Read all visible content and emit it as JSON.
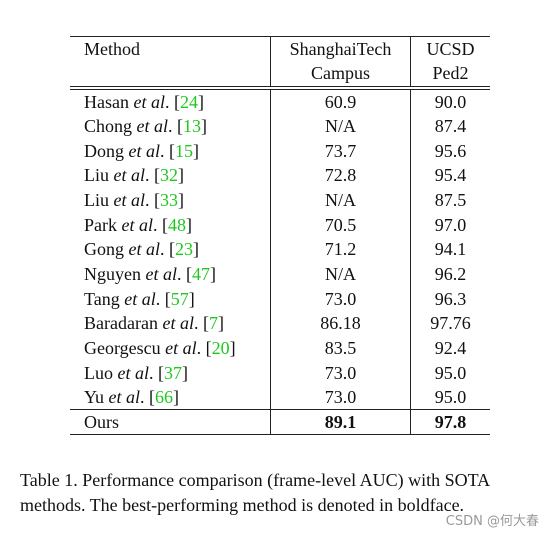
{
  "table": {
    "header": [
      [
        "Method"
      ],
      [
        "ShanghaiTech",
        "Campus"
      ],
      [
        "UCSD",
        "Ped2"
      ]
    ],
    "rows": [
      [
        [
          "Hasan ",
          "et al",
          ". [",
          "24",
          "]"
        ],
        "60.9",
        "90.0"
      ],
      [
        [
          "Chong ",
          "et al",
          ". [",
          "13",
          "]"
        ],
        "N/A",
        "87.4"
      ],
      [
        [
          "Dong ",
          "et al",
          ". [",
          "15",
          "]"
        ],
        "73.7",
        "95.6"
      ],
      [
        [
          "Liu ",
          "et al",
          ". [",
          "32",
          "]"
        ],
        "72.8",
        "95.4"
      ],
      [
        [
          "Liu ",
          "et al",
          ". [",
          "33",
          "]"
        ],
        "N/A",
        "87.5"
      ],
      [
        [
          "Park ",
          "et al",
          ". [",
          "48",
          "]"
        ],
        "70.5",
        "97.0"
      ],
      [
        [
          "Gong ",
          "et al",
          ". [",
          "23",
          "]"
        ],
        "71.2",
        "94.1"
      ],
      [
        [
          "Nguyen ",
          "et al",
          ". [",
          "47",
          "]"
        ],
        "N/A",
        "96.2"
      ],
      [
        [
          "Tang ",
          "et al",
          ". [",
          "57",
          "]"
        ],
        "73.0",
        "96.3"
      ],
      [
        [
          "Baradaran ",
          "et al",
          ". [",
          "7",
          "]"
        ],
        "86.18",
        "97.76"
      ],
      [
        [
          "Georgescu ",
          "et al",
          ". [",
          "20",
          "]"
        ],
        "83.5",
        "92.4"
      ],
      [
        [
          "Luo ",
          "et al",
          ". [",
          "37",
          "]"
        ],
        "73.0",
        "95.0"
      ],
      [
        [
          "Yu ",
          "et al",
          ". [",
          "66",
          "]"
        ],
        "73.0",
        "95.0"
      ],
      [
        [
          "Ours"
        ],
        "89.1",
        "97.8"
      ]
    ]
  },
  "caption": "Table 1. Performance comparison (frame-level AUC) with SOTA methods. The best-performing method is denoted in boldface.",
  "watermark": "CSDN @何大春"
}
